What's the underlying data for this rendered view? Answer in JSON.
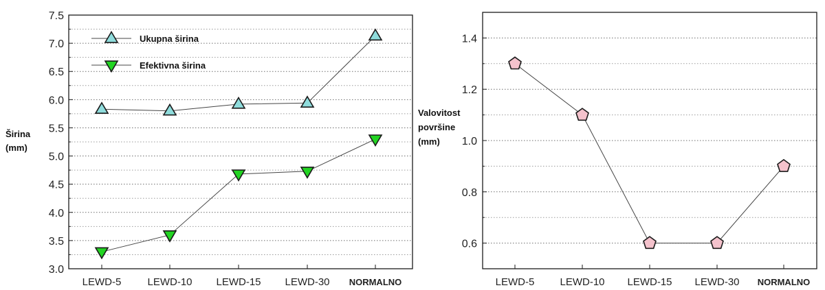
{
  "chart_data": [
    {
      "type": "line",
      "categories": [
        "LEWD-5",
        "LEWD-10",
        "LEWD-15",
        "LEWD-30",
        "NORMALNO"
      ],
      "ylabel": [
        "Širina",
        "(mm)"
      ],
      "ylim": [
        3.0,
        7.5
      ],
      "yticks": [
        "3.0",
        "3.5",
        "4.0",
        "4.5",
        "5.0",
        "5.5",
        "6.0",
        "6.5",
        "7.0",
        "7.5"
      ],
      "grid": true,
      "legend_position": "top-left",
      "series": [
        {
          "name": "Ukupna širina",
          "values": [
            5.83,
            5.8,
            5.92,
            5.94,
            7.13
          ],
          "marker": "triangle-up",
          "color": "#8fdcdc"
        },
        {
          "name": "Efektivna širina",
          "values": [
            3.3,
            3.6,
            4.68,
            4.73,
            5.3
          ],
          "marker": "triangle-down",
          "color": "#22d422"
        }
      ]
    },
    {
      "type": "line",
      "categories": [
        "LEWD-5",
        "LEWD-10",
        "LEWD-15",
        "LEWD-30",
        "NORMALNO"
      ],
      "ylabel": [
        "Valovitost",
        "površine",
        "(mm)"
      ],
      "ylim": [
        0.5,
        1.5
      ],
      "yticks": [
        "0.6",
        "0.8",
        "1.0",
        "1.2",
        "1.4"
      ],
      "grid": true,
      "series": [
        {
          "values": [
            1.3,
            1.1,
            0.6,
            0.6,
            0.9
          ],
          "marker": "pentagon",
          "color": "#f4c2cc"
        }
      ]
    }
  ]
}
